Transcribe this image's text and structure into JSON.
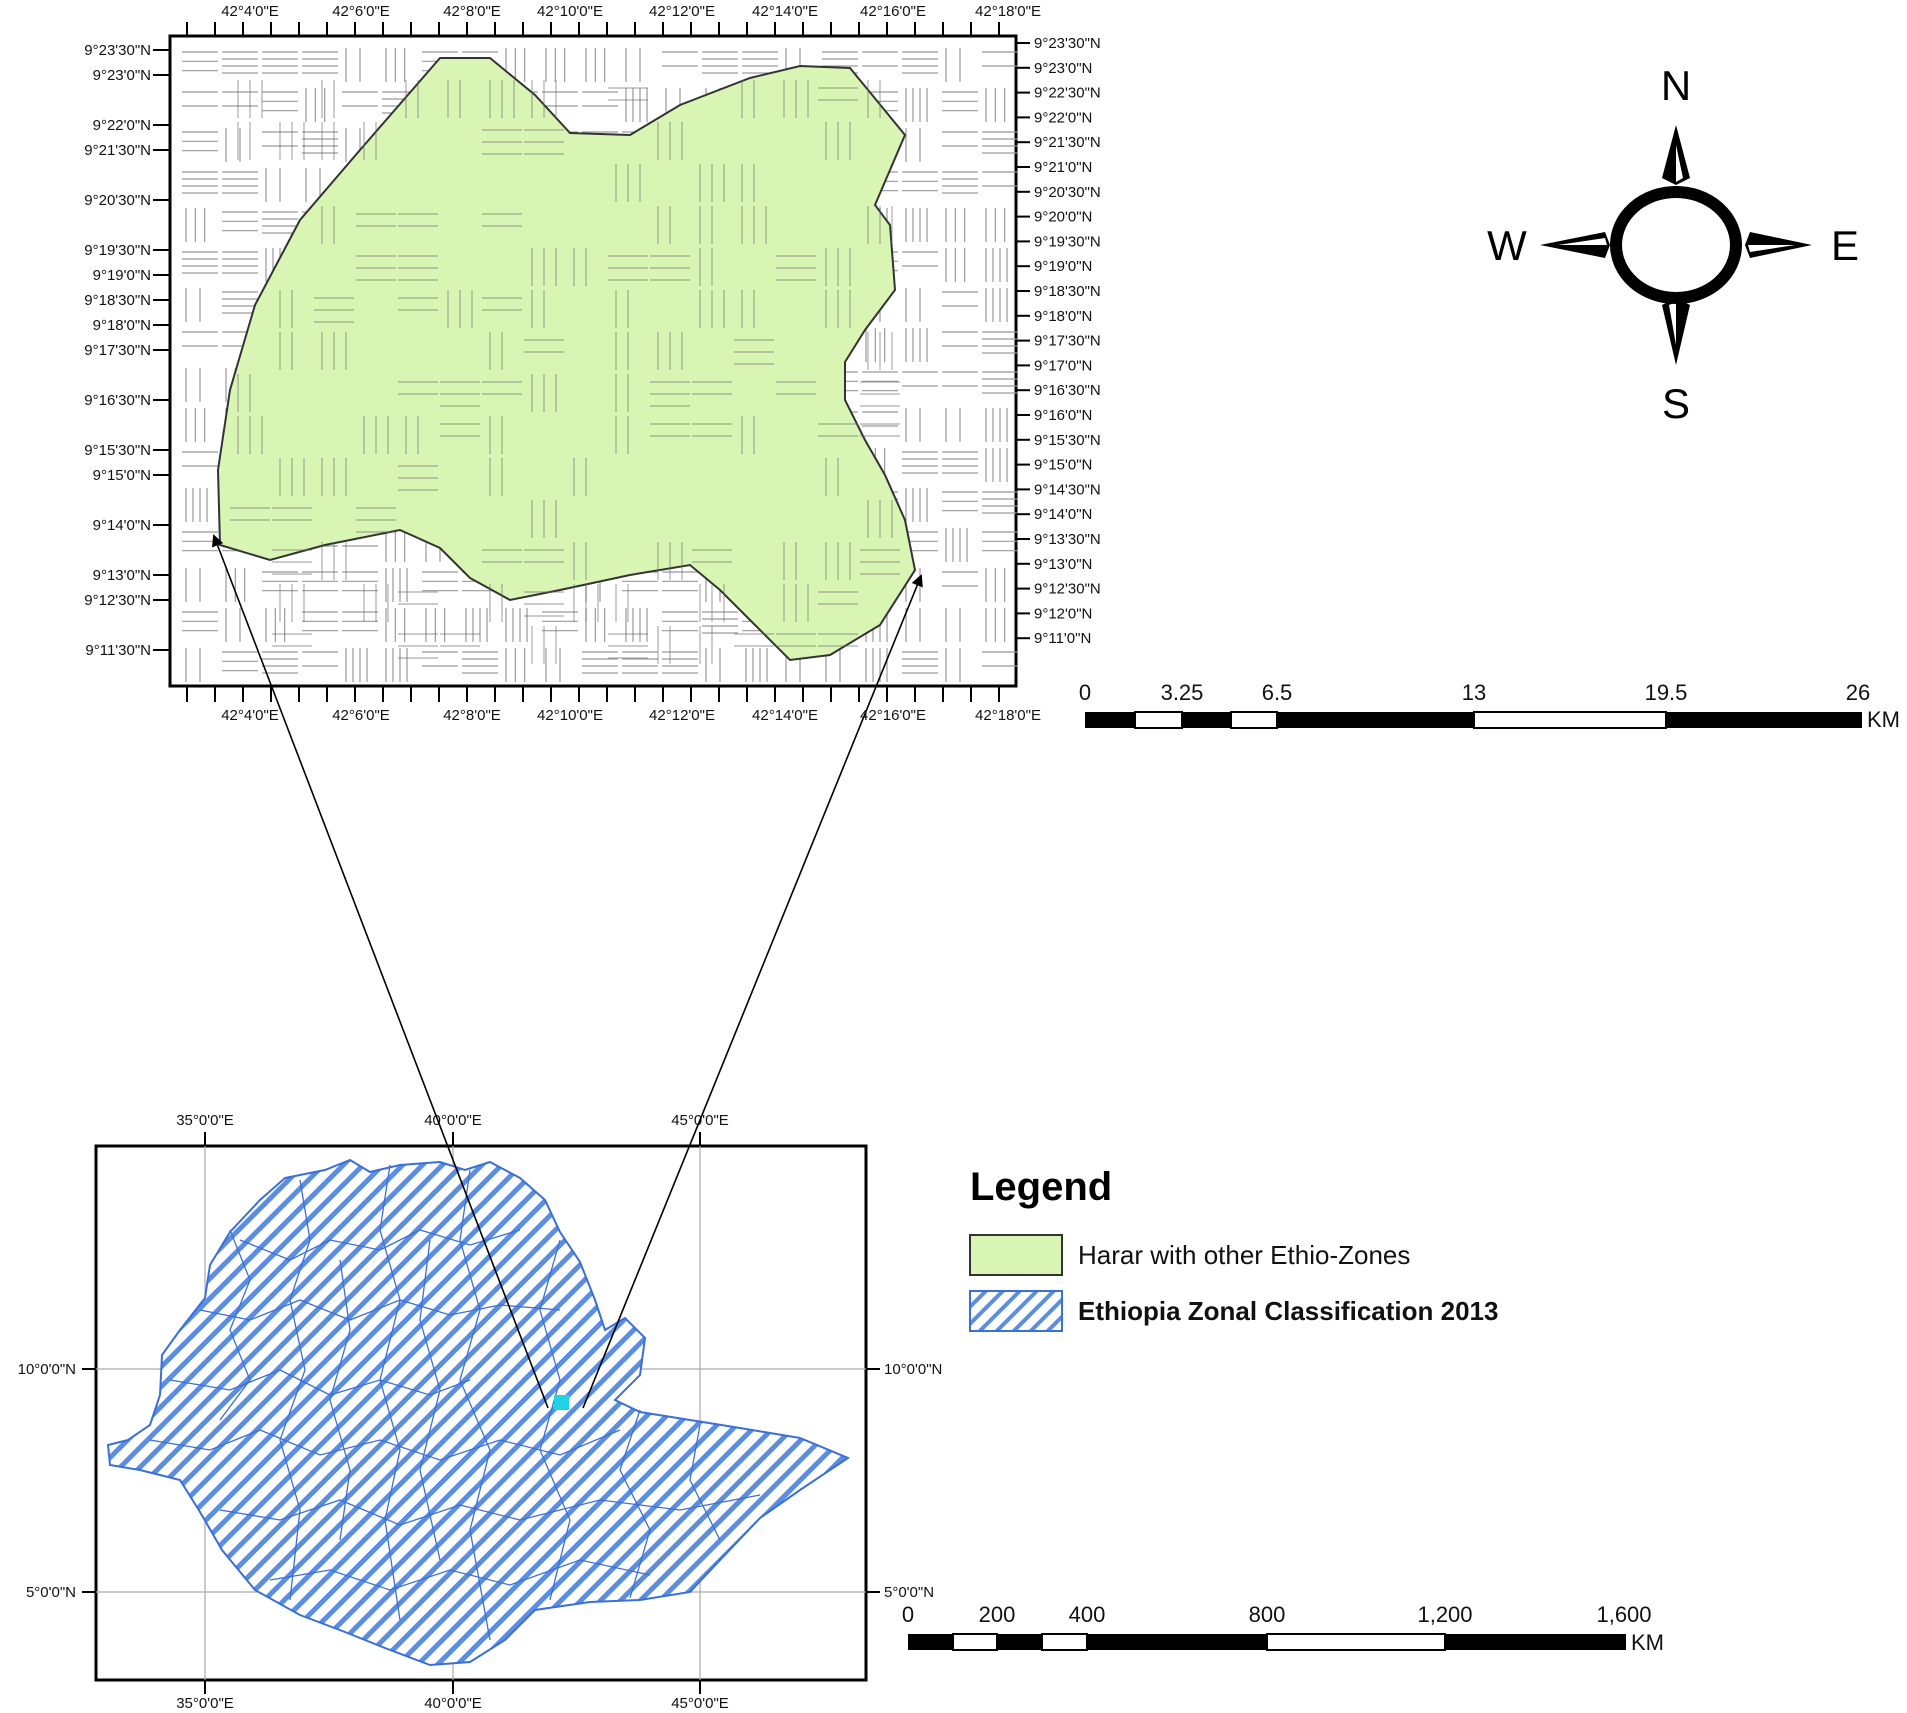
{
  "inset_map": {
    "top_lon_labels": [
      "42°4'0\"E",
      "42°6'0\"E",
      "42°8'0\"E",
      "42°10'0\"E",
      "42°12'0\"E",
      "42°14'0\"E",
      "42°16'0\"E",
      "42°18'0\"E"
    ],
    "bottom_lon_labels": [
      "42°4'0\"E",
      "42°6'0\"E",
      "42°8'0\"E",
      "42°10'0\"E",
      "42°12'0\"E",
      "42°14'0\"E",
      "42°16'0\"E",
      "42°18'0\"E"
    ],
    "left_lat_labels": [
      "9°23'30\"N",
      "9°23'0\"N",
      "9°22'0\"N",
      "9°21'30\"N",
      "9°20'30\"N",
      "9°19'30\"N",
      "9°19'0\"N",
      "9°18'30\"N",
      "9°18'0\"N",
      "9°17'30\"N",
      "9°16'30\"N",
      "9°15'30\"N",
      "9°15'0\"N",
      "9°14'0\"N",
      "9°13'0\"N",
      "9°12'30\"N",
      "9°11'30\"N"
    ],
    "right_lat_labels": [
      "9°23'30\"N",
      "9°23'0\"N",
      "9°22'30\"N",
      "9°22'0\"N",
      "9°21'30\"N",
      "9°21'0\"N",
      "9°20'30\"N",
      "9°20'0\"N",
      "9°19'30\"N",
      "9°19'0\"N",
      "9°18'30\"N",
      "9°18'0\"N",
      "9°17'30\"N",
      "9°17'0\"N",
      "9°16'30\"N",
      "9°16'0\"N",
      "9°15'30\"N",
      "9°15'0\"N",
      "9°14'30\"N",
      "9°14'0\"N",
      "9°13'30\"N",
      "9°13'0\"N",
      "9°12'30\"N",
      "9°12'0\"N",
      "9°11'0\"N"
    ],
    "fill_color": "#d9f5b4"
  },
  "compass": {
    "n": "N",
    "s": "S",
    "e": "E",
    "w": "W"
  },
  "scale_bar_top": {
    "labels": [
      "0",
      "3.25",
      "6.5",
      "13",
      "19.5",
      "26"
    ],
    "unit": "KM"
  },
  "ethiopia_map": {
    "top_lon_labels": [
      "35°0'0\"E",
      "40°0'0\"E",
      "45°0'0\"E"
    ],
    "bottom_lon_labels": [
      "35°0'0\"E",
      "40°0'0\"E",
      "45°0'0\"E"
    ],
    "left_lat_labels": [
      "10°0'0\"N",
      "5°0'0\"N"
    ],
    "right_lat_labels": [
      "10°0'0\"N",
      "5°0'0\"N"
    ],
    "hatch_color": "#5b8de0",
    "highlight_color": "#22d3e6"
  },
  "scale_bar_bottom": {
    "labels": [
      "0",
      "200",
      "400",
      "800",
      "1,200",
      "1,600"
    ],
    "unit": "KM"
  },
  "legend": {
    "title": "Legend",
    "items": [
      {
        "label": "Harar with other Ethio-Zones"
      },
      {
        "label": "Ethiopia Zonal Classification 2013"
      }
    ]
  }
}
